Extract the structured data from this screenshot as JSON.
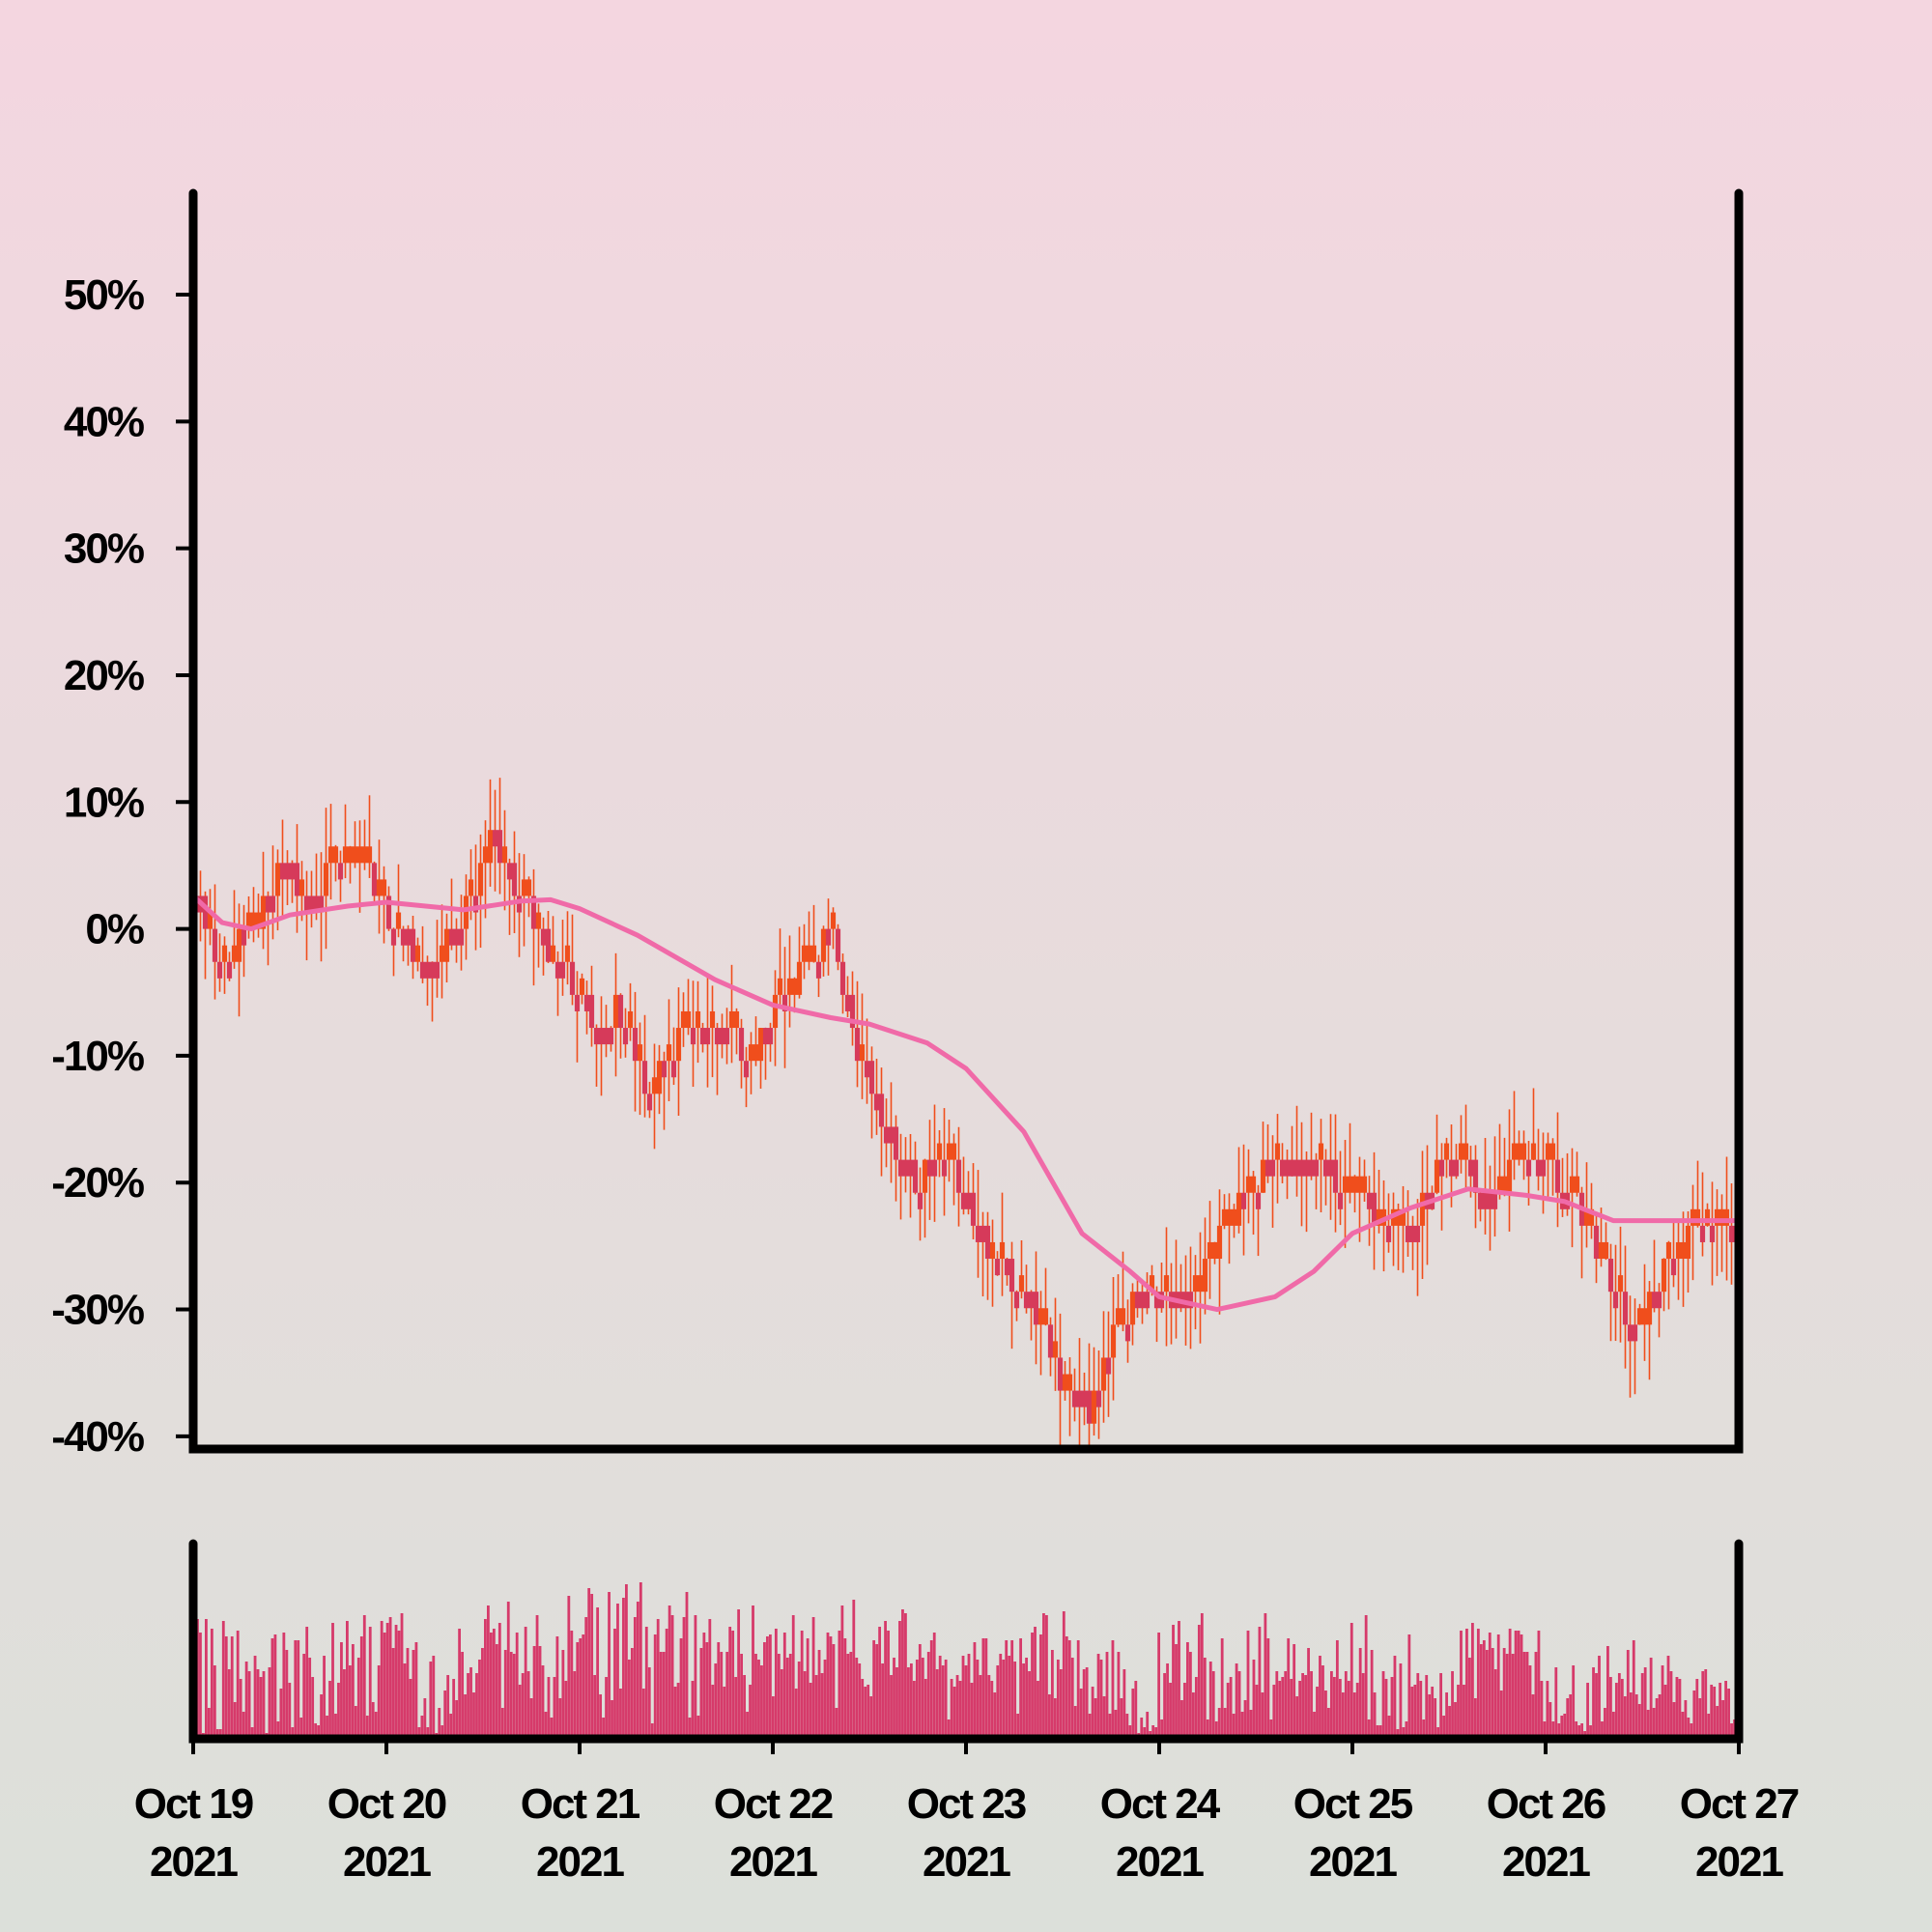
{
  "colors": {
    "up_candle": "#f04e1c",
    "down_candle": "#d63a5a",
    "moving_average": "#f06aa8",
    "volume": "#d63a6a",
    "axes": "#000000"
  },
  "chart_data": {
    "type": "candlestick",
    "y_unit": "percent",
    "ylim": [
      -41,
      58
    ],
    "yticks": [
      {
        "value": 50,
        "label": "50%"
      },
      {
        "value": 40,
        "label": "40%"
      },
      {
        "value": 30,
        "label": "30%"
      },
      {
        "value": 20,
        "label": "20%"
      },
      {
        "value": 10,
        "label": "10%"
      },
      {
        "value": 0,
        "label": "0%"
      },
      {
        "value": -10,
        "label": "-10%"
      },
      {
        "value": -20,
        "label": "-20%"
      },
      {
        "value": -30,
        "label": "-30%"
      },
      {
        "value": -40,
        "label": "-40%"
      }
    ],
    "xlim_days": [
      0,
      8
    ],
    "xticks": [
      {
        "line1": "Oct 19",
        "line2": "2021"
      },
      {
        "line1": "Oct 20",
        "line2": "2021"
      },
      {
        "line1": "Oct 21",
        "line2": "2021"
      },
      {
        "line1": "Oct 22",
        "line2": "2021"
      },
      {
        "line1": "Oct 23",
        "line2": "2021"
      },
      {
        "line1": "Oct 24",
        "line2": "2021"
      },
      {
        "line1": "Oct 25",
        "line2": "2021"
      },
      {
        "line1": "Oct 26",
        "line2": "2021"
      },
      {
        "line1": "Oct 27",
        "line2": "2021"
      }
    ],
    "price_path": [
      [
        0.0,
        3
      ],
      [
        0.15,
        -3
      ],
      [
        0.3,
        0
      ],
      [
        0.45,
        5
      ],
      [
        0.6,
        3
      ],
      [
        0.85,
        6
      ],
      [
        1.05,
        0
      ],
      [
        1.25,
        -3
      ],
      [
        1.45,
        3
      ],
      [
        1.55,
        7
      ],
      [
        1.75,
        1
      ],
      [
        1.9,
        -3
      ],
      [
        2.0,
        -5
      ],
      [
        2.1,
        -8
      ],
      [
        2.2,
        -6
      ],
      [
        2.35,
        -13
      ],
      [
        2.55,
        -8
      ],
      [
        2.75,
        -8
      ],
      [
        2.9,
        -10
      ],
      [
        3.05,
        -5
      ],
      [
        3.2,
        -3
      ],
      [
        3.3,
        0
      ],
      [
        3.45,
        -10
      ],
      [
        3.6,
        -16
      ],
      [
        3.75,
        -20
      ],
      [
        3.9,
        -18
      ],
      [
        4.1,
        -25
      ],
      [
        4.35,
        -30
      ],
      [
        4.5,
        -36
      ],
      [
        4.65,
        -38
      ],
      [
        4.75,
        -32
      ],
      [
        4.95,
        -28
      ],
      [
        5.2,
        -28
      ],
      [
        5.4,
        -22
      ],
      [
        5.6,
        -18
      ],
      [
        5.85,
        -19
      ],
      [
        6.1,
        -22
      ],
      [
        6.3,
        -24
      ],
      [
        6.5,
        -17
      ],
      [
        6.7,
        -21
      ],
      [
        6.9,
        -18
      ],
      [
        7.1,
        -20
      ],
      [
        7.3,
        -26
      ],
      [
        7.45,
        -32
      ],
      [
        7.6,
        -27
      ],
      [
        7.75,
        -24
      ],
      [
        7.85,
        -24
      ],
      [
        8.0,
        -24
      ]
    ],
    "moving_average": [
      [
        0.0,
        2.6
      ],
      [
        0.15,
        0.5
      ],
      [
        0.3,
        0
      ],
      [
        0.5,
        1.1
      ],
      [
        0.8,
        1.8
      ],
      [
        1.0,
        2.1
      ],
      [
        1.4,
        1.5
      ],
      [
        1.7,
        2.2
      ],
      [
        1.85,
        2.3
      ],
      [
        2.0,
        1.6
      ],
      [
        2.3,
        -0.5
      ],
      [
        2.7,
        -4
      ],
      [
        3.0,
        -6
      ],
      [
        3.3,
        -7
      ],
      [
        3.5,
        -7.5
      ],
      [
        3.8,
        -9
      ],
      [
        4.0,
        -11
      ],
      [
        4.3,
        -16
      ],
      [
        4.6,
        -24
      ],
      [
        4.85,
        -27
      ],
      [
        5.0,
        -29
      ],
      [
        5.3,
        -30
      ],
      [
        5.6,
        -29
      ],
      [
        5.8,
        -27
      ],
      [
        6.0,
        -24
      ],
      [
        6.3,
        -22
      ],
      [
        6.6,
        -20.5
      ],
      [
        6.9,
        -21
      ],
      [
        7.1,
        -21.5
      ],
      [
        7.35,
        -23
      ],
      [
        7.6,
        -23
      ],
      [
        8.0,
        -23
      ]
    ],
    "volume": {
      "relative_to_max": true,
      "values": [
        0.48,
        0.62,
        0.55,
        0.03,
        0.62,
        0.16,
        0.57,
        0.38,
        0.05,
        0.05,
        0.61,
        0.53,
        0.36,
        0.53,
        0.19,
        0.56,
        0.31,
        0.14,
        0.4,
        0.35,
        0.06,
        0.43,
        0.36,
        0.32,
        0.35,
        0.03,
        0.37,
        0.52,
        0.54,
        0.09,
        0.26,
        0.55,
        0.46,
        0.29,
        0.06,
        0.51,
        0.51,
        0.11,
        0.44,
        0.58,
        0.42,
        0.32,
        0.08,
        0.07,
        0.23,
        0.43,
        0.12,
        0.3,
        0.6,
        0.13,
        0.29,
        0.5,
        0.36,
        0.61,
        0.38,
        0.49,
        0.17,
        0.42,
        0.53,
        0.64,
        0.12,
        0.58,
        0.19,
        0.14,
        0.38,
        0.61,
        0.55,
        0.6,
        0.63,
        0.47,
        0.59,
        0.56,
        0.65,
        0.39,
        0.47,
        0.31,
        0.46,
        0.5,
        0.06,
        0.12,
        0.21,
        0.06,
        0.4,
        0.43,
        0.03,
        0.16,
        0.07,
        0.25,
        0.33,
        0.13,
        0.31,
        0.2,
        0.57,
        0.45,
        0.23,
        0.34,
        0.37,
        0.24,
        0.34,
        0.41,
        0.47,
        0.62,
        0.69,
        0.55,
        0.57,
        0.49,
        0.6,
        0.16,
        0.46,
        0.71,
        0.45,
        0.44,
        0.55,
        0.28,
        0.34,
        0.58,
        0.35,
        0.21,
        0.48,
        0.64,
        0.48,
        0.38,
        0.14,
        0.32,
        0.11,
        0.32,
        0.53,
        0.21,
        0.46,
        0.3,
        0.74,
        0.56,
        0.35,
        0.5,
        0.52,
        0.54,
        0.63,
        0.78,
        0.75,
        0.33,
        0.68,
        0.23,
        0.11,
        0.32,
        0.76,
        0.2,
        0.57,
        0.7,
        0.26,
        0.73,
        0.8,
        0.41,
        0.47,
        0.63,
        0.71,
        0.81,
        0.26,
        0.58,
        0.37,
        0.08,
        0.54,
        0.62,
        0.45,
        0.45,
        0.57,
        0.69,
        0.64,
        0.27,
        0.29,
        0.52,
        0.63,
        0.76,
        0.11,
        0.3,
        0.64,
        0.12,
        0.47,
        0.55,
        0.5,
        0.62,
        0.28,
        0.39,
        0.5,
        0.45,
        0.27,
        0.45,
        0.58,
        0.56,
        0.32,
        0.67,
        0.44,
        0.33,
        0.14,
        0.28,
        0.69,
        0.44,
        0.41,
        0.38,
        0.5,
        0.53,
        0.54,
        0.22,
        0.57,
        0.44,
        0.36,
        0.55,
        0.42,
        0.44,
        0.64,
        0.26,
        0.4,
        0.56,
        0.35,
        0.52,
        0.29,
        0.63,
        0.33,
        0.46,
        0.34,
        0.41,
        0.55,
        0.53,
        0.49,
        0.16,
        0.56,
        0.69,
        0.52,
        0.44,
        0.45,
        0.72,
        0.42,
        0.39,
        0.31,
        0.27,
        0.28,
        0.22,
        0.51,
        0.49,
        0.58,
        0.39,
        0.61,
        0.56,
        0.33,
        0.42,
        0.37,
        0.61,
        0.67,
        0.65,
        0.37,
        0.39,
        0.3,
        0.41,
        0.49,
        0.42,
        0.31,
        0.45,
        0.51,
        0.55,
        0.36,
        0.43,
        0.38,
        0.41,
        0.1,
        0.31,
        0.27,
        0.33,
        0.3,
        0.43,
        0.38,
        0.44,
        0.29,
        0.5,
        0.41,
        0.33,
        0.52,
        0.52,
        0.33,
        0.3,
        0.24,
        0.38,
        0.44,
        0.41,
        0.51,
        0.43,
        0.51,
        0.4,
        0.13,
        0.52,
        0.39,
        0.42,
        0.35,
        0.55,
        0.58,
        0.3,
        0.54,
        0.65,
        0.64,
        0.23,
        0.46,
        0.21,
        0.41,
        0.36,
        0.66,
        0.53,
        0.51,
        0.42,
        0.17,
        0.51,
        0.26,
        0.36,
        0.37,
        0.13,
        0.27,
        0.21,
        0.44,
        0.41,
        0.22,
        0.45,
        0.13,
        0.51,
        0.15,
        0.45,
        0.21,
        0.36,
        0.13,
        0.07,
        0.26,
        0.3,
        0.03,
        0.11,
        0.06,
        0.14,
        0.04,
        0.07,
        0.06,
        0.55,
        0.1,
        0.34,
        0.39,
        0.29,
        0.59,
        0.49,
        0.61,
        0.2,
        0.29,
        0.5,
        0.45,
        0.24,
        0.32,
        0.59,
        0.65,
        0.42,
        0.1,
        0.4,
        0.35,
        0.09,
        0.16,
        0.52,
        0.16,
        0.29,
        0.32,
        0.13,
        0.39,
        0.35,
        0.14,
        0.2,
        0.56,
        0.15,
        0.41,
        0.28,
        0.58,
        0.24,
        0.65,
        0.52,
        0.1,
        0.28,
        0.35,
        0.3,
        0.32,
        0.35,
        0.52,
        0.31,
        0.49,
        0.22,
        0.3,
        0.34,
        0.33,
        0.47,
        0.35,
        0.14,
        0.27,
        0.43,
        0.38,
        0.25,
        0.16,
        0.35,
        0.32,
        0.51,
        0.31,
        0.24,
        0.35,
        0.3,
        0.6,
        0.24,
        0.29,
        0.47,
        0.34,
        0.64,
        0.1,
        0.46,
        0.24,
        0.07,
        0.07,
        0.35,
        0.31,
        0.12,
        0.32,
        0.43,
        0.05,
        0.39,
        0.06,
        0.09,
        0.54,
        0.27,
        0.28,
        0.34,
        0.3,
        0.1,
        0.33,
        0.23,
        0.27,
        0.21,
        0.06,
        0.34,
        0.12,
        0.24,
        0.17,
        0.35,
        0.19,
        0.28,
        0.56,
        0.28,
        0.57,
        0.42,
        0.6,
        0.21,
        0.57,
        0.49,
        0.51,
        0.46,
        0.55,
        0.47,
        0.36,
        0.54,
        0.25,
        0.47,
        0.44,
        0.57,
        0.44,
        0.56,
        0.56,
        0.54,
        0.45,
        0.45,
        0.38,
        0.23,
        0.45,
        0.56,
        0.3,
        0.09,
        0.3,
        0.19,
        0.09,
        0.37,
        0.08,
        0.12,
        0.13,
        0.21,
        0.23,
        0.38,
        0.09,
        0.07,
        0.08,
        0.04,
        0.29,
        0.07,
        0.37,
        0.34,
        0.43,
        0.09,
        0.16,
        0.48,
        0.32,
        0.14,
        0.29,
        0.34,
        0.31,
        0.22,
        0.46,
        0.24,
        0.51,
        0.23,
        0.18,
        0.34,
        0.37,
        0.15,
        0.42,
        0.16,
        0.21,
        0.23,
        0.38,
        0.28,
        0.43,
        0.35,
        0.19,
        0.32,
        0.31,
        0.14,
        0.2,
        0.11,
        0.08,
        0.25,
        0.31,
        0.21,
        0.35,
        0.36,
        0.13,
        0.28,
        0.27,
        0.17,
        0.29,
        0.2,
        0.3,
        0.26,
        0.08,
        0.1,
        0.09
      ]
    }
  }
}
